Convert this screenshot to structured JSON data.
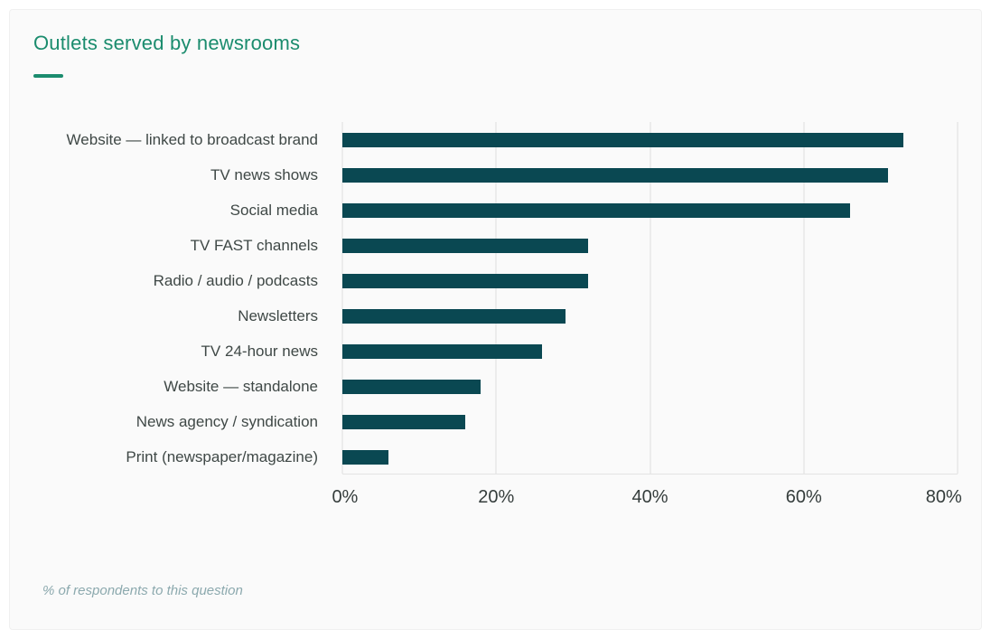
{
  "card": {
    "title": "Outlets served by newsrooms",
    "footnote": "% of respondents to this question"
  },
  "chart_data": {
    "type": "bar",
    "orientation": "horizontal",
    "title": "Outlets served by newsrooms",
    "categories": [
      "Website — linked to broadcast brand",
      "TV news shows",
      "Social media",
      "TV FAST channels",
      "Radio / audio / podcasts",
      "Newsletters",
      "TV 24-hour news",
      "Website — standalone",
      "News agency / syndication",
      "Print (newspaper/magazine)"
    ],
    "values": [
      73,
      71,
      66,
      32,
      32,
      29,
      26,
      18,
      16,
      6
    ],
    "xlabel": "",
    "ylabel": "",
    "xlim": [
      0,
      80
    ],
    "x_tick_labels": [
      "0%",
      "20%",
      "40%",
      "60%",
      "80%"
    ],
    "grid": true,
    "legend": "none",
    "footnote": "% of respondents to this question",
    "colors": {
      "bar": "#0a4852",
      "title": "#1b8c6e",
      "category_label": "#3f4846",
      "axis_label": "#353d3c",
      "gridline": "#ececec",
      "footnote": "#8ca9ae",
      "card_background": "#fafafa",
      "page_background": "#ffffff"
    }
  }
}
